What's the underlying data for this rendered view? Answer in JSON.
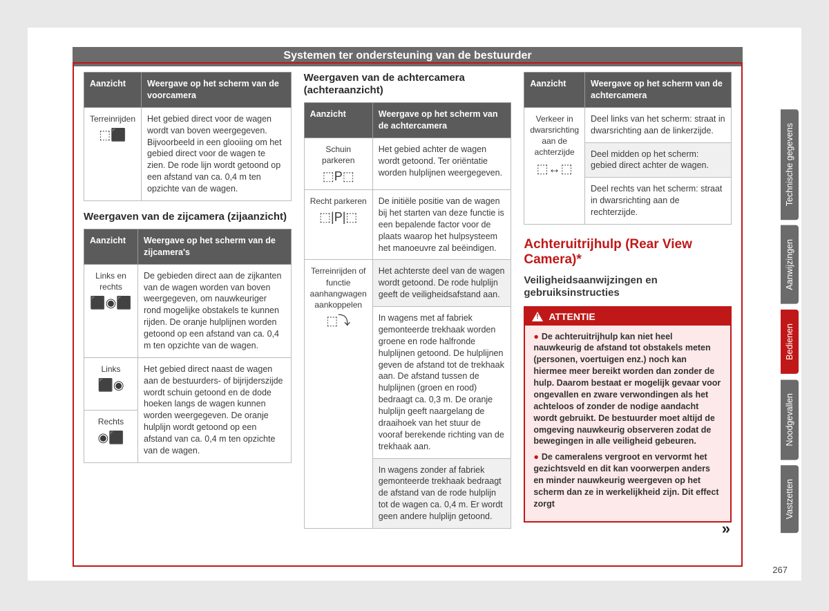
{
  "pageNumber": "267",
  "header": "Systemen ter ondersteuning van de bestuurder",
  "tabs": [
    {
      "label": "Technische gegevens",
      "active": false
    },
    {
      "label": "Aanwijzingen",
      "active": false
    },
    {
      "label": "Bedienen",
      "active": true
    },
    {
      "label": "Noodgevallen",
      "active": false
    },
    {
      "label": "Vastzetten",
      "active": false
    }
  ],
  "col1": {
    "table1": {
      "h1": "Aanzicht",
      "h2": "Weergave op het scherm van de voorcamera",
      "rows": [
        {
          "label": "Terreinrijden",
          "icon": "⬚⬛",
          "text": "Het gebied direct voor de wagen wordt van boven weergegeven. Bijvoorbeeld in een glooiing om het gebied direct voor de wagen te zien. De rode lijn wordt getoond op een afstand van ca. 0,4 m ten opzichte van de wagen."
        }
      ]
    },
    "heading2": "Weergaven van de zijcamera (zijaanzicht)",
    "table2": {
      "h1": "Aanzicht",
      "h2": "Weergave op het scherm van de zijcamera's",
      "rows": [
        {
          "label": "Links en rechts",
          "icon": "⬛◉⬛",
          "text": "De gebieden direct aan de zijkanten van de wagen worden van boven weergegeven, om nauwkeuriger rond mogelijke obstakels te kunnen rijden. De oranje hulplijnen worden getoond op een afstand van ca. 0,4 m ten opzichte van de wagen."
        },
        {
          "label": "Links",
          "icon": "⬛◉",
          "text": "Het gebied direct naast de wagen aan de bestuurders- of bijrijderszijde wordt schuin getoond en de dode hoeken langs de wagen kunnen worden weergegeven. De oranje hulplijn wordt getoond op een afstand van ca. 0,4 m ten opzichte van de wagen.",
          "rowspan": true
        },
        {
          "label": "Rechts",
          "icon": "◉⬛"
        }
      ]
    }
  },
  "col2": {
    "heading": "Weergaven van de achtercamera (achteraanzicht)",
    "table": {
      "h1": "Aanzicht",
      "h2": "Weergave op het scherm van de achtercamera",
      "rows": [
        {
          "label": "Schuin parkeren",
          "icon": "⬚P⬚",
          "text": "Het gebied achter de wagen wordt getoond. Ter oriëntatie worden hulplijnen weergegeven."
        },
        {
          "label": "Recht parkeren",
          "icon": "⬚|P|⬚",
          "text": "De initiële positie van de wagen bij het starten van deze functie is een bepalende factor voor de plaats waarop het hulpsysteem het manoeuvre zal beëindigen."
        },
        {
          "label": "Terreinrijden of functie aanhangwagen aankoppelen",
          "icon": "⬚⤵",
          "texts": [
            "Het achterste deel van de wagen wordt getoond. De rode hulplijn geeft de veiligheidsafstand aan.",
            "In wagens met af fabriek gemonteerde trekhaak worden groene en rode halfronde hulplijnen getoond. De hulplijnen geven de afstand tot de trekhaak aan. De afstand tussen de hulplijnen (groen en rood) bedraagt ca. 0,3 m. De oranje hulplijn geeft naargelang de draaihoek van het stuur de vooraf berekende richting van de trekhaak aan.",
            "In wagens zonder af fabriek gemonteerde trekhaak bedraagt de afstand van de rode hulplijn tot de wagen ca. 0,4 m. Er wordt geen andere hulplijn getoond."
          ]
        }
      ]
    }
  },
  "col3": {
    "table": {
      "h1": "Aanzicht",
      "h2": "Weergave op het scherm van de achtercamera",
      "rows": [
        {
          "label": "Verkeer in dwarsrichting aan de achterzijde",
          "icon": "⬚↔⬚",
          "texts": [
            "Deel links van het scherm: straat in dwarsrichting aan de linkerzijde.",
            "Deel midden op het scherm: gebied direct achter de wagen.",
            "Deel rechts van het scherm: straat in dwarsrichting aan de rechterzijde."
          ]
        }
      ]
    },
    "redTitle": "Achteruitrijhulp (Rear View Camera)*",
    "subTitle": "Veiligheidsaanwijzingen en gebruiksinstructies",
    "attn": {
      "title": "ATTENTIE",
      "items": [
        "De achteruitrijhulp kan niet heel nauwkeurig de afstand tot obstakels meten (personen, voertuigen enz.) noch kan hiermee meer bereikt worden dan zonder de hulp. Daarom bestaat er mogelijk gevaar voor ongevallen en zware verwondingen als het achteloos of zonder de nodige aandacht wordt gebruikt. De bestuurder moet altijd de omgeving nauwkeurig observeren zodat de bewegingen in alle veiligheid gebeuren.",
        "De cameralens vergroot en vervormt het gezichtsveld en dit kan voorwerpen anders en minder nauwkeurig weergeven op het scherm dan ze in werkelijkheid zijn. Dit effect zorgt"
      ]
    }
  }
}
